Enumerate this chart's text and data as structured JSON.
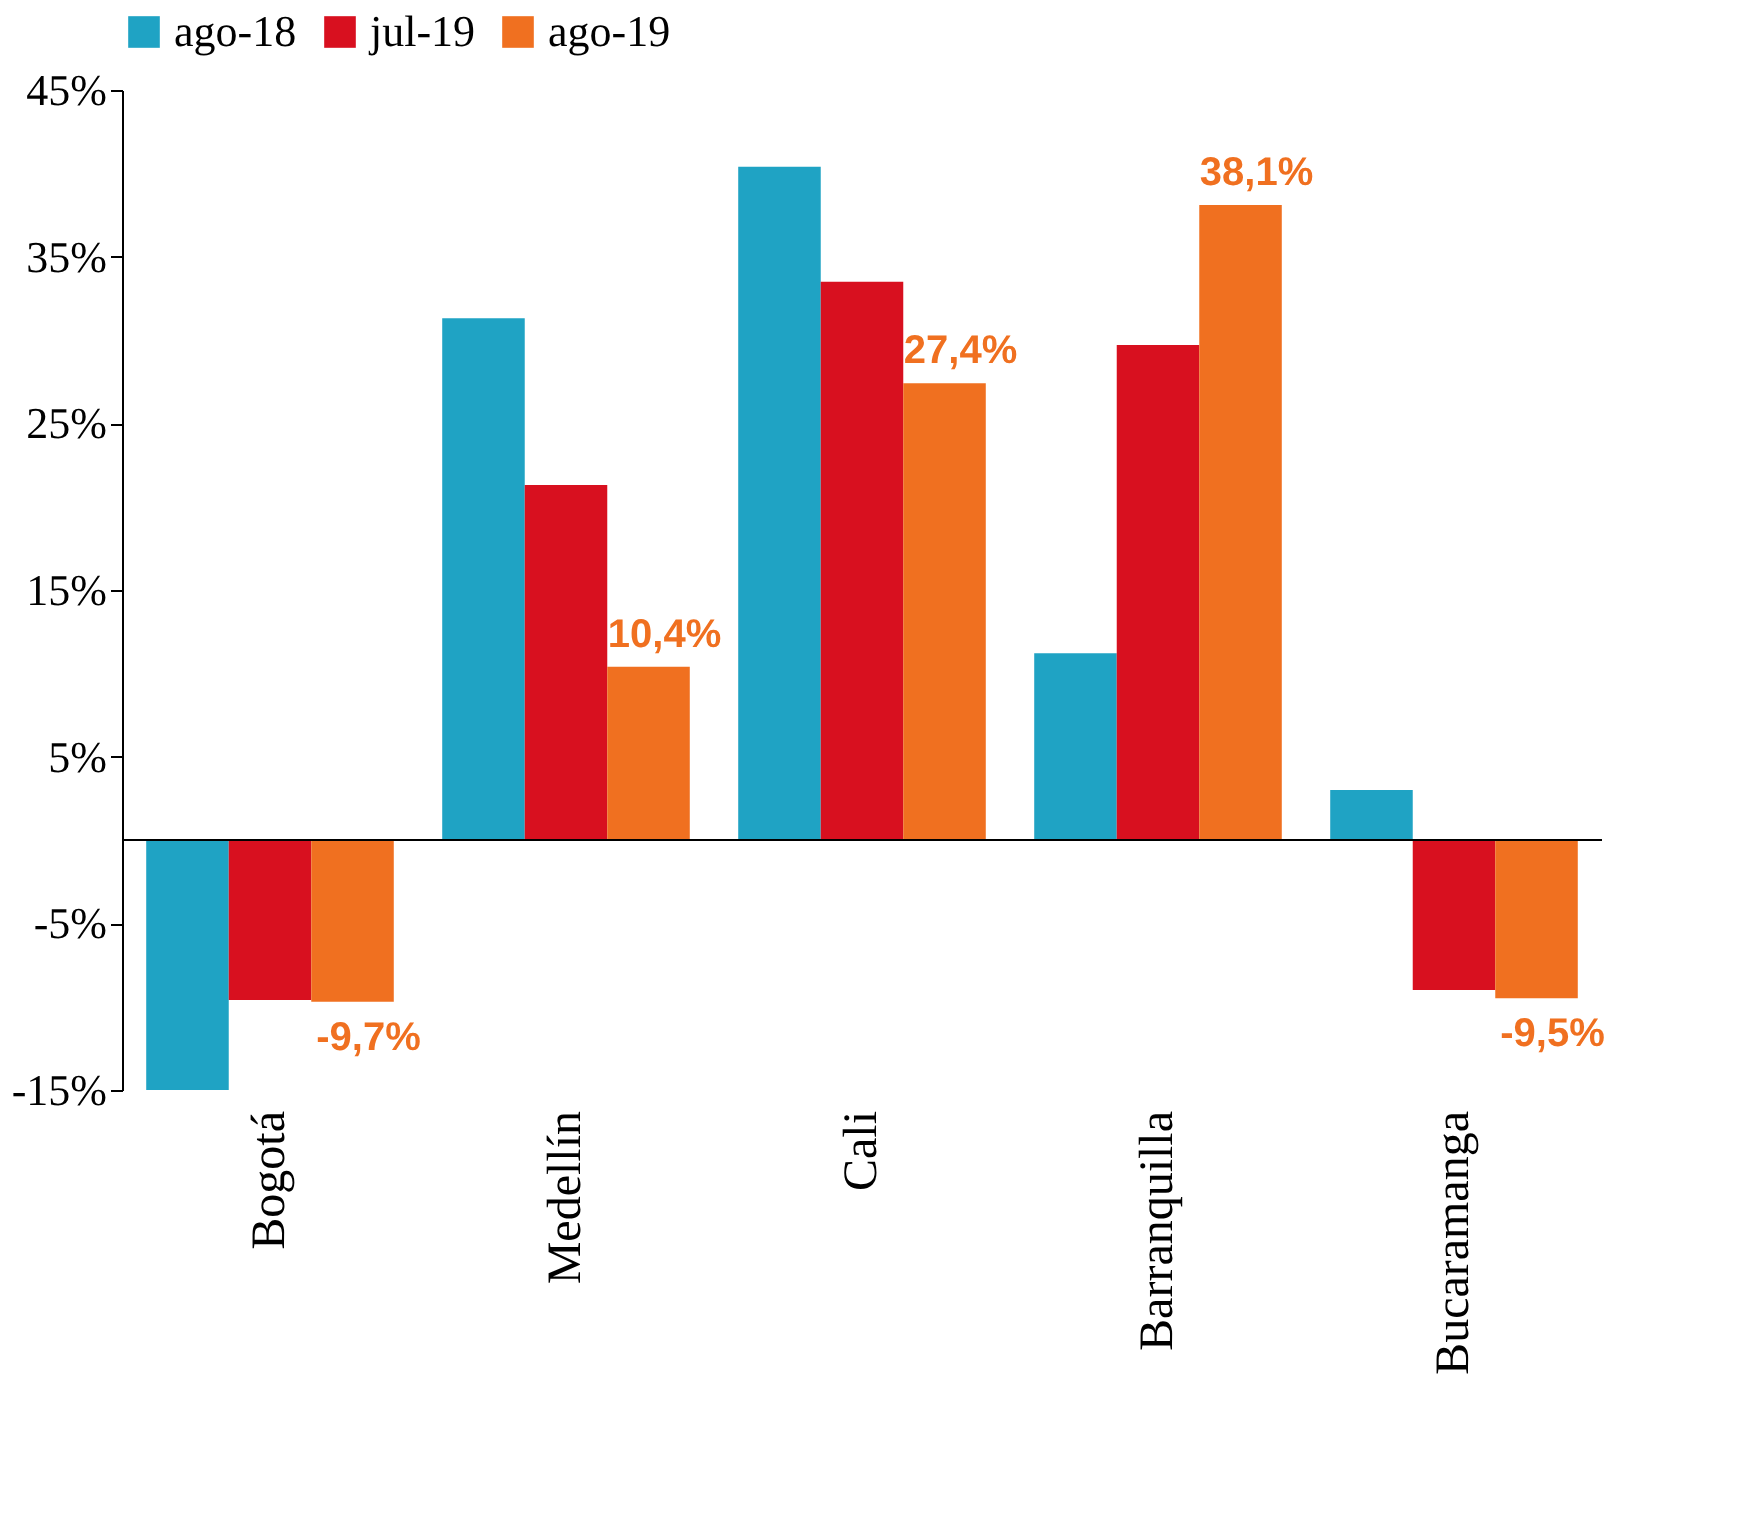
{
  "chart_data": {
    "type": "bar",
    "categories": [
      "Bogotá",
      "Medellín",
      "Cali",
      "Barranquilla",
      "Bucaramanga"
    ],
    "series": [
      {
        "name": "ago-18",
        "color": "#1fa3c4",
        "values": [
          -15,
          31.3,
          40.4,
          11.2,
          3.0
        ]
      },
      {
        "name": "jul-19",
        "color": "#d8101f",
        "values": [
          -9.6,
          21.3,
          33.5,
          29.7,
          -9.0
        ]
      },
      {
        "name": "ago-19",
        "color": "#f07020",
        "values": [
          -9.7,
          10.4,
          27.4,
          38.1,
          -9.5
        ],
        "value_labels": [
          "-9,7%",
          "10,4%",
          "27,4%",
          "38,1%",
          "-9,5%"
        ]
      }
    ],
    "ylim": [
      -15,
      45
    ],
    "yticks": [
      {
        "value": -15,
        "label": "-15%"
      },
      {
        "value": -5,
        "label": "-5%"
      },
      {
        "value": 5,
        "label": "5%"
      },
      {
        "value": 15,
        "label": "15%"
      },
      {
        "value": 25,
        "label": "25%"
      },
      {
        "value": 35,
        "label": "35%"
      },
      {
        "value": 45,
        "label": "45%"
      }
    ],
    "grid": false,
    "legend": "top"
  }
}
